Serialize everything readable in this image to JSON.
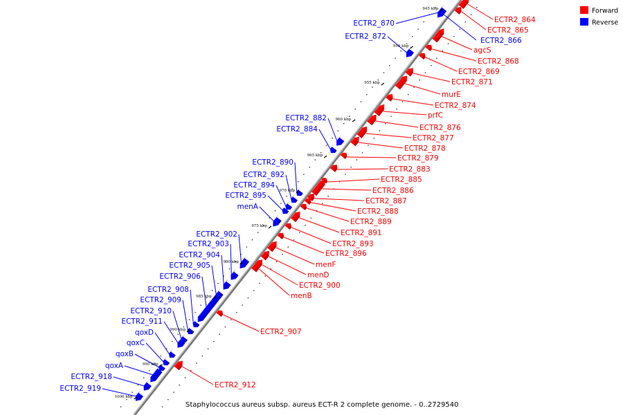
{
  "colors": {
    "forward": "#ff0000",
    "reverse": "#0000ff",
    "backbone": "#888888"
  },
  "legend": [
    {
      "label": "Forward",
      "color": "#ff0000"
    },
    {
      "label": "Reverse",
      "color": "#0000ff"
    }
  ],
  "caption": "Staphylococcus aureus subsp. aureus ECT-R 2 complete genome. - 0..2729540",
  "ticks": [
    "945 kbp",
    "950 kbp",
    "955 kbp",
    "960 kbp",
    "965 kbp",
    "970 kbp",
    "975 kbp",
    "980 kbp",
    "985 kbp",
    "990 kbp",
    "995 kbp",
    "1000 kbp"
  ],
  "forward_genes": [
    "ECTR2_864",
    "ECTR2_865",
    "agcS",
    "ECTR2_868",
    "ECTR2_869",
    "ECTR2_871",
    "murE",
    "ECTR2_874",
    "prfC",
    "ECTR2_876",
    "ECTR2_877",
    "ECTR2_878",
    "ECTR2_879",
    "ECTR2_883",
    "ECTR2_885",
    "ECTR2_886",
    "ECTR2_887",
    "ECTR2_888",
    "ECTR2_889",
    "ECTR2_891",
    "ECTR2_893",
    "ECTR2_896",
    "menF",
    "menD",
    "ECTR2_900",
    "menB",
    "ECTR2_907",
    "ECTR2_912"
  ],
  "reverse_genes": [
    "ECTR2_866",
    "ECTR2_870",
    "ECTR2_872",
    "ECTR2_882",
    "ECTR2_884",
    "ECTR2_890",
    "ECTR2_892",
    "ECTR2_894",
    "ECTR2_895",
    "menA",
    "ECTR2_902",
    "ECTR2_903",
    "ECTR2_904",
    "ECTR2_905",
    "ECTR2_906",
    "ECTR2_908",
    "ECTR2_909",
    "ECTR2_910",
    "ECTR2_911",
    "qoxD",
    "qoxC",
    "qoxB",
    "qoxA",
    "ECTR2_918",
    "ECTR2_919"
  ]
}
